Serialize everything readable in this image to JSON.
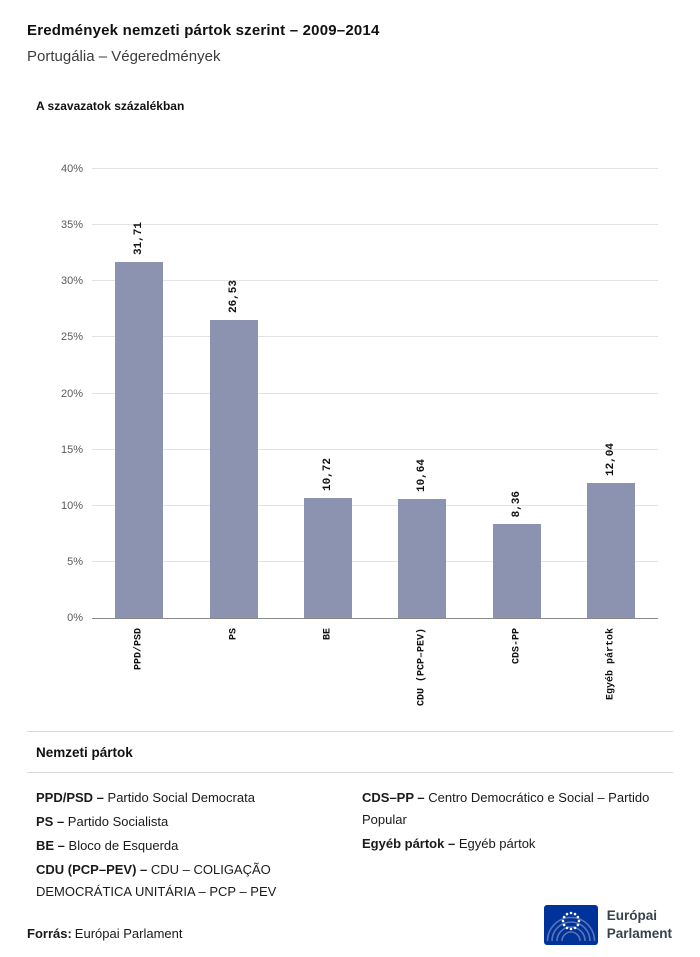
{
  "header": {
    "title": "Eredmények nemzeti pártok szerint – 2009–2014",
    "subtitle": "Portugália – Végeredmények"
  },
  "chart_data": {
    "type": "bar",
    "title": "A szavazatok százalékban",
    "categories": [
      "PPD/PSD",
      "PS",
      "BE",
      "CDU (PCP–PEV)",
      "CDS-PP",
      "Egyéb pártok"
    ],
    "values": [
      31.71,
      26.53,
      10.72,
      10.64,
      8.36,
      12.04
    ],
    "value_labels": [
      "31,71",
      "26,53",
      "10,72",
      "10,64",
      "8,36",
      "12,04"
    ],
    "xlabel": "",
    "ylabel": "A szavazatok százalékban",
    "ylim": [
      0,
      40
    ],
    "ytick_step": 5,
    "ytick_labels": [
      "0%",
      "5%",
      "10%",
      "15%",
      "20%",
      "25%",
      "30%",
      "35%",
      "40%"
    ],
    "bar_color": "#8b93b1",
    "grid": true,
    "legend_position": "none"
  },
  "legend": {
    "heading": "Nemzeti pártok",
    "columns": [
      [
        {
          "abbr": "PPD/PSD –",
          "name": "Partido Social Democrata"
        },
        {
          "abbr": "PS –",
          "name": "Partido Socialista"
        },
        {
          "abbr": "BE –",
          "name": "Bloco de Esquerda"
        },
        {
          "abbr": "CDU (PCP–PEV) –",
          "name": "CDU – COLIGAÇÃO DEMOCRÁTICA UNITÁRIA – PCP – PEV"
        }
      ],
      [
        {
          "abbr": "CDS–PP –",
          "name": "Centro Democrático e Social – Partido Popular"
        },
        {
          "abbr": "Egyéb pártok –",
          "name": "Egyéb pártok"
        }
      ]
    ]
  },
  "footer": {
    "source_label": "Forrás:",
    "source_value": "Európai Parlament",
    "logo_line1": "Európai",
    "logo_line2": "Parlament"
  }
}
